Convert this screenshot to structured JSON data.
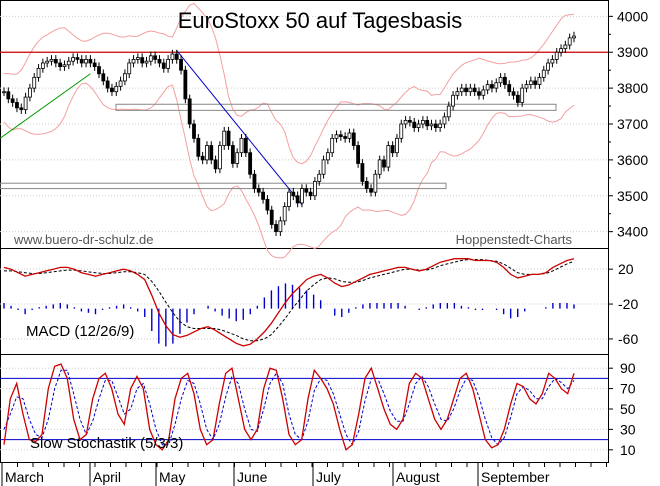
{
  "chart_data": [
    {
      "type": "candlestick",
      "title": "EuroStoxx 50 auf Tagesbasis",
      "watermark_left": "www.buero-dr-schulz.de",
      "watermark_right": "Hoppenstedt-Charts",
      "y_ticks": [
        3400,
        3500,
        3600,
        3700,
        3800,
        3900,
        4000
      ],
      "ylim": [
        3360,
        4040
      ],
      "resistance_level": 3900,
      "colors": {
        "resistance": "#cc0000",
        "trend_up": "#009900",
        "trend_down": "#0000cc",
        "bands": "#f4a0a0",
        "support_box": "#888888",
        "candle": "#000000"
      },
      "closes": [
        3790,
        3770,
        3760,
        3745,
        3740,
        3775,
        3800,
        3830,
        3855,
        3870,
        3875,
        3880,
        3870,
        3860,
        3865,
        3875,
        3885,
        3880,
        3870,
        3880,
        3870,
        3860,
        3840,
        3820,
        3800,
        3790,
        3805,
        3820,
        3840,
        3870,
        3880,
        3885,
        3870,
        3875,
        3890,
        3880,
        3870,
        3855,
        3880,
        3895,
        3880,
        3850,
        3770,
        3700,
        3660,
        3610,
        3600,
        3640,
        3600,
        3575,
        3640,
        3680,
        3640,
        3590,
        3620,
        3660,
        3620,
        3560,
        3520,
        3510,
        3490,
        3460,
        3420,
        3400,
        3430,
        3470,
        3510,
        3500,
        3480,
        3520,
        3510,
        3500,
        3540,
        3560,
        3600,
        3620,
        3660,
        3670,
        3665,
        3660,
        3675,
        3640,
        3590,
        3540,
        3520,
        3510,
        3560,
        3600,
        3580,
        3640,
        3620,
        3660,
        3700,
        3710,
        3705,
        3690,
        3700,
        3710,
        3695,
        3700,
        3690,
        3700,
        3720,
        3750,
        3780,
        3790,
        3800,
        3790,
        3800,
        3790,
        3780,
        3795,
        3810,
        3800,
        3815,
        3830,
        3810,
        3790,
        3780,
        3760,
        3800,
        3810,
        3820,
        3810,
        3830,
        3850,
        3870,
        3880,
        3900,
        3910,
        3920,
        3940,
        3945
      ]
    },
    {
      "type": "line",
      "title": "MACD (12/26/9)",
      "y_ticks": [
        20,
        -20,
        -60
      ],
      "ylim": [
        -75,
        42
      ],
      "colors": {
        "macd": "#cc0000",
        "signal": "#000000",
        "histogram": "#0000cc"
      },
      "macd": [
        22,
        20,
        16,
        12,
        14,
        16,
        18,
        20,
        22,
        22,
        20,
        16,
        14,
        12,
        14,
        16,
        18,
        20,
        18,
        14,
        8,
        -10,
        -30,
        -45,
        -55,
        -58,
        -56,
        -52,
        -48,
        -46,
        -50,
        -55,
        -60,
        -65,
        -68,
        -66,
        -60,
        -52,
        -42,
        -30,
        -18,
        -8,
        0,
        8,
        12,
        14,
        10,
        4,
        0,
        2,
        6,
        10,
        14,
        16,
        18,
        20,
        22,
        22,
        20,
        18,
        20,
        24,
        28,
        30,
        32,
        32,
        32,
        30,
        30,
        30,
        28,
        22,
        14,
        10,
        12,
        14,
        14,
        16,
        22,
        26,
        30,
        32
      ],
      "signal": [
        18,
        18,
        17,
        16,
        15,
        15,
        16,
        17,
        18,
        19,
        19,
        18,
        17,
        16,
        15,
        15,
        16,
        17,
        17,
        16,
        14,
        6,
        -5,
        -18,
        -30,
        -40,
        -46,
        -48,
        -48,
        -48,
        -48,
        -50,
        -53,
        -56,
        -60,
        -62,
        -62,
        -60,
        -55,
        -46,
        -36,
        -25,
        -15,
        -5,
        2,
        8,
        10,
        9,
        6,
        5,
        5,
        7,
        10,
        12,
        14,
        16,
        18,
        20,
        20,
        19,
        19,
        21,
        24,
        26,
        28,
        30,
        31,
        31,
        31,
        30,
        29,
        26,
        21,
        16,
        14,
        14,
        14,
        15,
        18,
        22,
        26,
        29
      ]
    },
    {
      "type": "line",
      "title": "Slow Stochastik (5/3/3)",
      "y_ticks": [
        90,
        70,
        50,
        30,
        10
      ],
      "ylim": [
        0,
        100
      ],
      "levels": [
        80,
        20
      ],
      "colors": {
        "k": "#cc0000",
        "d": "#0000cc",
        "levels": "#0000cc"
      },
      "k": [
        15,
        60,
        75,
        45,
        20,
        18,
        25,
        70,
        92,
        94,
        80,
        40,
        20,
        25,
        60,
        80,
        85,
        70,
        45,
        35,
        70,
        82,
        70,
        30,
        15,
        10,
        20,
        60,
        80,
        85,
        65,
        30,
        15,
        20,
        55,
        85,
        90,
        60,
        30,
        20,
        30,
        70,
        90,
        88,
        60,
        25,
        15,
        20,
        60,
        88,
        80,
        70,
        55,
        30,
        10,
        15,
        45,
        80,
        90,
        70,
        50,
        35,
        30,
        40,
        75,
        85,
        80,
        60,
        40,
        30,
        40,
        60,
        80,
        85,
        70,
        45,
        20,
        12,
        15,
        30,
        55,
        75,
        72,
        60,
        55,
        65,
        85,
        80,
        70,
        65,
        85
      ],
      "d": [
        30,
        45,
        62,
        60,
        40,
        25,
        22,
        40,
        70,
        88,
        88,
        65,
        40,
        25,
        38,
        60,
        78,
        78,
        62,
        45,
        50,
        70,
        75,
        55,
        30,
        15,
        15,
        35,
        60,
        78,
        75,
        55,
        30,
        20,
        35,
        62,
        82,
        75,
        50,
        30,
        28,
        50,
        75,
        85,
        75,
        45,
        25,
        20,
        38,
        68,
        80,
        78,
        65,
        45,
        25,
        15,
        28,
        58,
        80,
        80,
        65,
        48,
        38,
        38,
        55,
        75,
        82,
        72,
        55,
        40,
        38,
        50,
        68,
        80,
        78,
        62,
        40,
        22,
        15,
        22,
        42,
        65,
        72,
        68,
        60,
        60,
        72,
        80,
        76,
        70,
        78
      ]
    }
  ],
  "x_axis": {
    "months": [
      "March",
      "April",
      "May",
      "June",
      "July",
      "August",
      "September"
    ]
  }
}
